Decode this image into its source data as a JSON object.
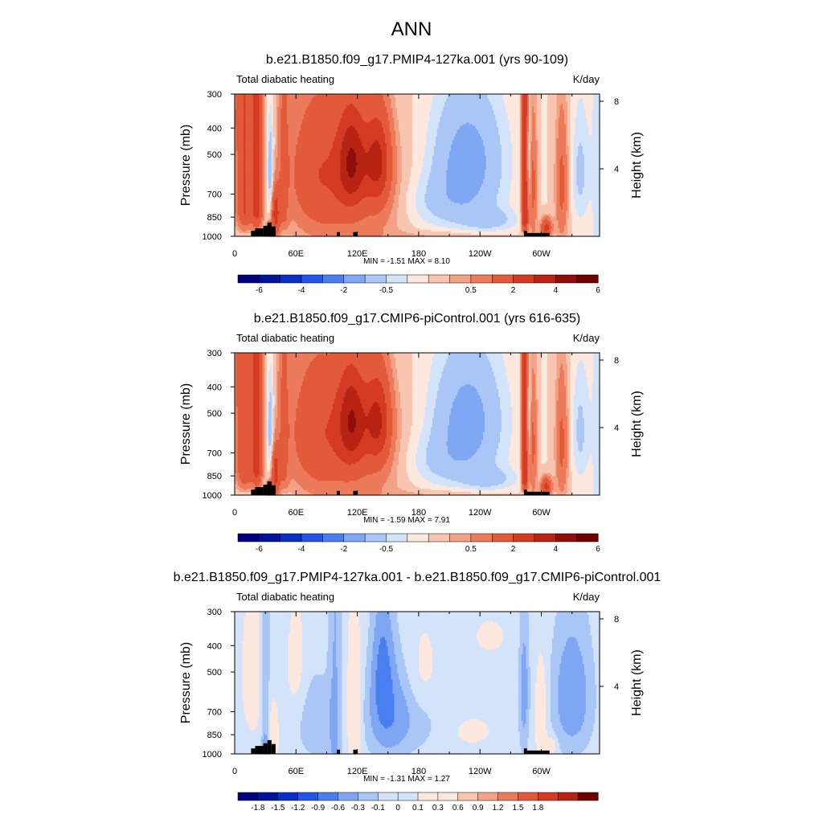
{
  "figure": {
    "title": "ANN"
  },
  "axes": {
    "pressure_label": "Pressure (mb)",
    "height_label": "Height (km)",
    "pressure_ticks": [
      {
        "value": 300,
        "label": "300"
      },
      {
        "value": 400,
        "label": "400"
      },
      {
        "value": 500,
        "label": "500"
      },
      {
        "value": 700,
        "label": "700"
      },
      {
        "value": 850,
        "label": "850"
      },
      {
        "value": 1000,
        "label": "1000"
      }
    ],
    "height_ticks": [
      {
        "value": 4,
        "label": "4"
      },
      {
        "value": 8,
        "label": "8"
      }
    ],
    "lon_ticks": [
      {
        "value": 0,
        "label": "0"
      },
      {
        "value": 60,
        "label": "60E"
      },
      {
        "value": 120,
        "label": "120E"
      },
      {
        "value": 180,
        "label": "180"
      },
      {
        "value": 240,
        "label": "120W"
      },
      {
        "value": 300,
        "label": "60W"
      }
    ],
    "lon_range": [
      0,
      357
    ],
    "pressure_range": [
      300,
      1000
    ]
  },
  "chart_data": [
    {
      "type": "heatmap",
      "title": "b.e21.B1850.f09_g17.PMIP4-127ka.001 (yrs 90-109)",
      "left_label": "Total diabatic heating",
      "units": "K/day",
      "min_label": "MIN =  -1.51  MAX =  8.10",
      "min": -1.51,
      "max": 8.1,
      "colorbar_levels": [
        -7,
        -6,
        -5,
        -4,
        -3,
        -2,
        -1,
        -0.5,
        -0.25,
        0,
        0.25,
        0.5,
        1,
        2,
        3,
        4,
        5,
        6,
        7
      ],
      "colorbar_labels": [
        "-6",
        "-4",
        "-2",
        "-0.5",
        "0.5",
        "2",
        "4",
        "6"
      ],
      "variant": "full",
      "scale": 1.0
    },
    {
      "type": "heatmap",
      "title": "b.e21.B1850.f09_g17.CMIP6-piControl.001 (yrs 616-635)",
      "left_label": "Total diabatic heating",
      "units": "K/day",
      "min_label": "MIN =  -1.59  MAX =  7.91",
      "min": -1.59,
      "max": 7.91,
      "colorbar_levels": [
        -7,
        -6,
        -5,
        -4,
        -3,
        -2,
        -1,
        -0.5,
        -0.25,
        0,
        0.25,
        0.5,
        1,
        2,
        3,
        4,
        5,
        6,
        7
      ],
      "colorbar_labels": [
        "-6",
        "-4",
        "-2",
        "-0.5",
        "0.5",
        "2",
        "4",
        "6"
      ],
      "variant": "full",
      "scale": 0.97
    },
    {
      "type": "heatmap",
      "title": "b.e21.B1850.f09_g17.PMIP4-127ka.001 - b.e21.B1850.f09_g17.CMIP6-piControl.001",
      "left_label": "Total diabatic heating",
      "units": "K/day",
      "min_label": "MIN =  -1.31  MAX =  1.27",
      "min": -1.31,
      "max": 1.27,
      "colorbar_levels": [
        -2.1,
        -1.8,
        -1.5,
        -1.2,
        -0.9,
        -0.6,
        -0.3,
        -0.1,
        0,
        0.1,
        0.3,
        0.6,
        0.9,
        1.2,
        1.5,
        1.8,
        2.1
      ],
      "colorbar_labels": [
        "-1.8",
        "-1.5",
        "-1.2",
        "-0.9",
        "-0.6",
        "-0.3",
        "-0.1",
        "0",
        "0.1",
        "0.3",
        "0.6",
        "0.9",
        "1.2",
        "1.5",
        "1.8"
      ],
      "variant": "diff",
      "scale": 1.0
    }
  ],
  "colors": {
    "levels": [
      "#00007f",
      "#00149a",
      "#0a2fc4",
      "#2454e8",
      "#4a7ff0",
      "#7fa7f3",
      "#a9c6f6",
      "#d3e3fa",
      "#fce8de",
      "#f8c6b0",
      "#f2a286",
      "#ec7b5c",
      "#e35a3a",
      "#d53a22",
      "#b82314",
      "#8e0f0a",
      "#6f0000"
    ],
    "diff_levels": [
      "#00007f",
      "#00149a",
      "#0a2fc4",
      "#2454e8",
      "#4a7ff0",
      "#7fa7f3",
      "#a9c6f6",
      "#d3e3fa",
      "#d3e3fa",
      "#fce8de",
      "#fce8de",
      "#f8c6b0",
      "#f2a286",
      "#ec7b5c",
      "#e35a3a",
      "#d53a22",
      "#b82314",
      "#6f0000"
    ],
    "terrain": "#000000"
  }
}
